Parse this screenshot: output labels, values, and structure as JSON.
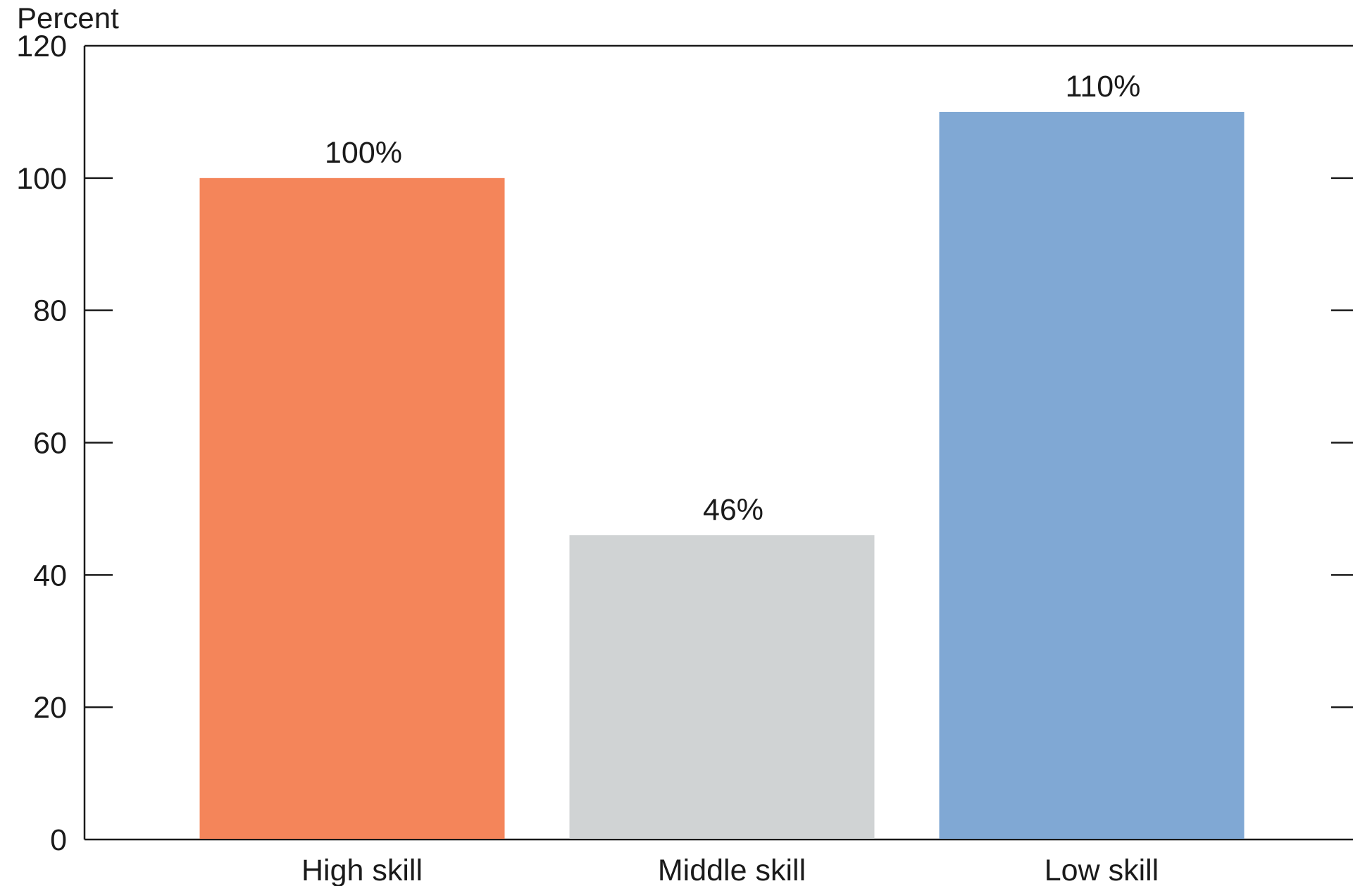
{
  "chart_data": {
    "type": "bar",
    "title": "",
    "xlabel": "",
    "ylabel": "Percent",
    "ylim": [
      0,
      120
    ],
    "yticks": [
      0,
      20,
      40,
      60,
      80,
      100,
      120
    ],
    "categories": [
      "High skill",
      "Middle skill",
      "Low skill"
    ],
    "values": [
      100,
      46,
      110
    ],
    "value_labels": [
      "100%",
      "46%",
      "110%"
    ],
    "bar_colors": [
      "#F4855A",
      "#D0D3D4",
      "#80A8D4"
    ],
    "grid": false,
    "legend": "none"
  }
}
